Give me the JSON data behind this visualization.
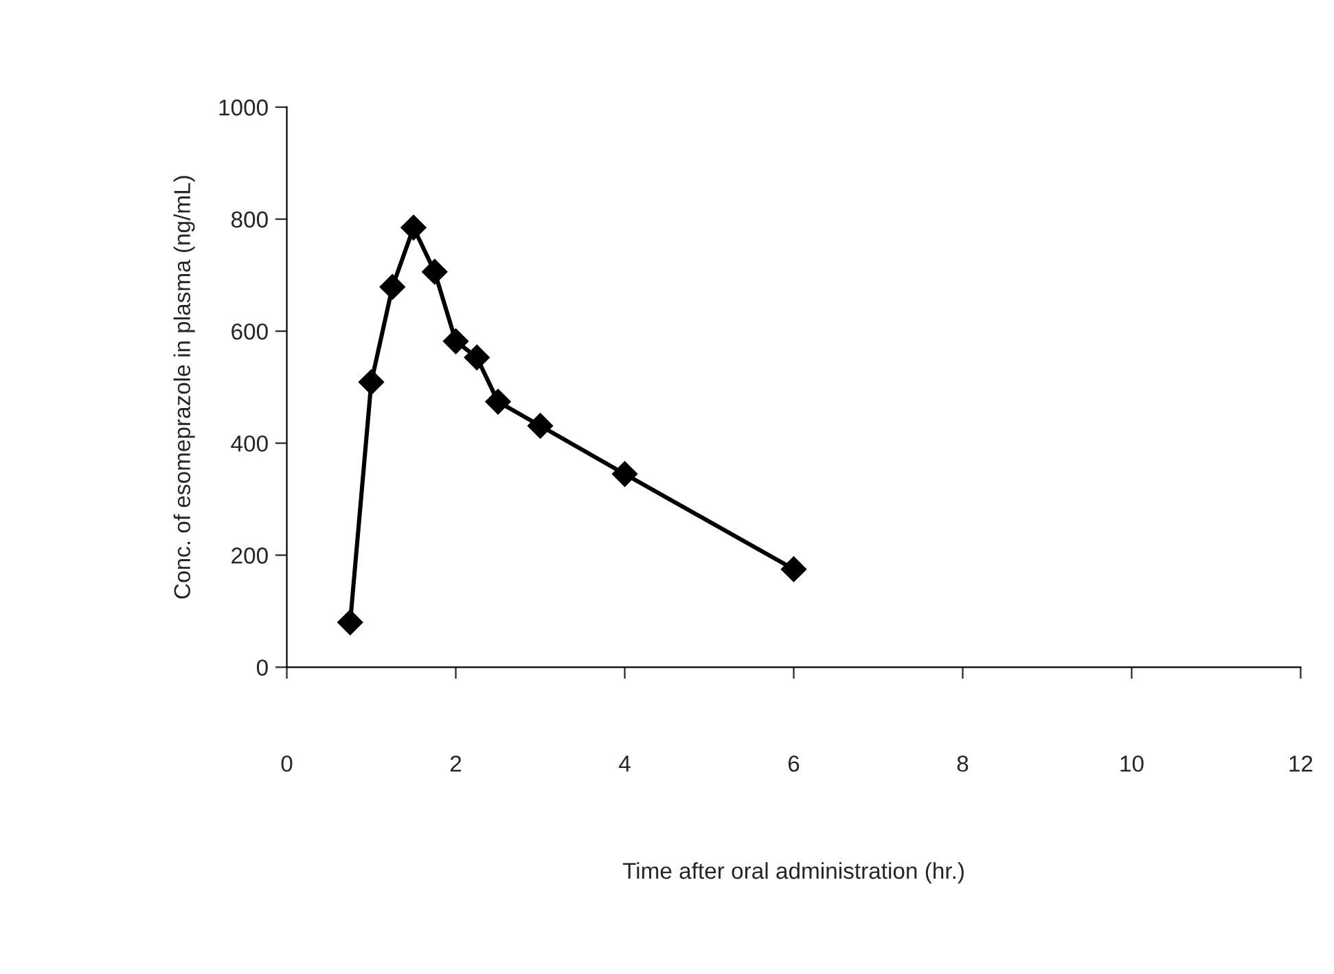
{
  "chart_data": {
    "type": "line",
    "xlabel": "Time after oral administration (hr.)",
    "ylabel": "Conc. of esomeprazole in plasma (ng/mL)",
    "x": [
      0.75,
      1,
      1.25,
      1.5,
      1.75,
      2,
      2.25,
      2.5,
      3,
      4,
      6
    ],
    "series": [
      {
        "color": "#000000",
        "values": [
          80,
          509,
          679,
          785,
          706,
          582,
          553,
          474,
          431,
          345,
          175
        ]
      }
    ],
    "xlim": [
      0,
      12
    ],
    "xticks": [
      0,
      2,
      4,
      6,
      8,
      10,
      12
    ],
    "ylim": [
      0,
      1000
    ],
    "yticks": [
      0,
      200,
      400,
      600,
      800,
      1000
    ],
    "marker": "diamond",
    "line_style": "solid",
    "grid": false,
    "legend": false
  }
}
